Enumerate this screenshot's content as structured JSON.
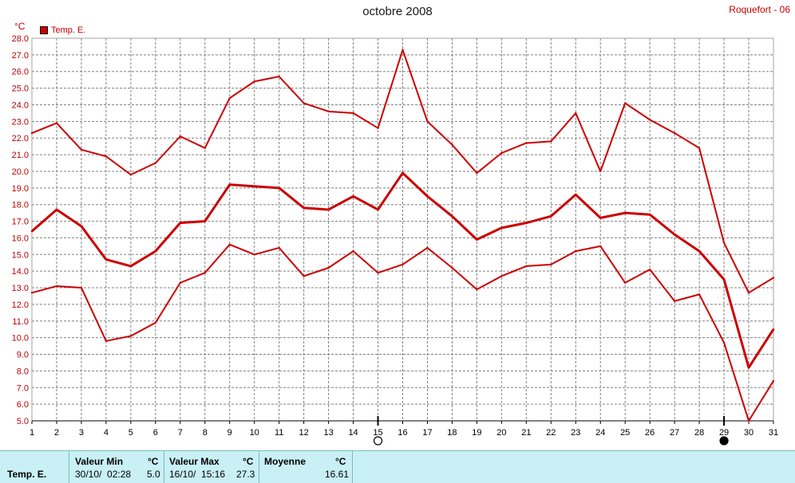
{
  "header": {
    "title": "octobre 2008",
    "station": "Roquefort - 06",
    "unit": "°C",
    "legend_label": "Temp. E."
  },
  "colors": {
    "series": "#cc0000",
    "grid": "#808080",
    "axis_text": "#c00000"
  },
  "chart_data": {
    "type": "line",
    "title": "octobre 2008",
    "ylabel": "°C",
    "ylim": [
      5.0,
      28.0
    ],
    "xlim": [
      1,
      31
    ],
    "grid": true,
    "legend_position": "top-left",
    "x": [
      1,
      2,
      3,
      4,
      5,
      6,
      7,
      8,
      9,
      10,
      11,
      12,
      13,
      14,
      15,
      16,
      17,
      18,
      19,
      20,
      21,
      22,
      23,
      24,
      25,
      26,
      27,
      28,
      29,
      30,
      31
    ],
    "series": [
      {
        "name": "Temp. E.",
        "role": "max",
        "values": [
          22.3,
          22.9,
          21.3,
          20.9,
          19.8,
          20.5,
          22.1,
          21.4,
          24.4,
          25.4,
          25.7,
          24.1,
          23.6,
          23.5,
          22.6,
          27.3,
          23.0,
          21.6,
          19.9,
          21.1,
          21.7,
          21.8,
          23.5,
          20.0,
          24.1,
          23.1,
          22.3,
          21.4,
          15.7,
          12.7,
          13.6
        ]
      },
      {
        "role": "mean",
        "values": [
          16.4,
          17.7,
          16.7,
          14.7,
          14.3,
          15.2,
          16.9,
          17.0,
          19.2,
          19.1,
          19.0,
          17.8,
          17.7,
          18.5,
          17.7,
          19.9,
          18.5,
          17.3,
          15.9,
          16.6,
          16.9,
          17.3,
          18.6,
          17.2,
          17.5,
          17.4,
          16.2,
          15.2,
          13.5,
          8.2,
          10.5
        ]
      },
      {
        "role": "min",
        "values": [
          12.7,
          13.1,
          13.0,
          9.8,
          10.1,
          10.9,
          13.3,
          13.9,
          15.6,
          15.0,
          15.4,
          13.7,
          14.2,
          15.2,
          13.9,
          14.4,
          15.4,
          14.2,
          12.9,
          13.7,
          14.3,
          14.4,
          15.2,
          15.5,
          13.3,
          14.1,
          12.2,
          12.6,
          9.7,
          5.0,
          7.4
        ]
      }
    ],
    "moon_phases": [
      {
        "day": 15,
        "phase": "full"
      },
      {
        "day": 29,
        "phase": "new"
      }
    ]
  },
  "footer": {
    "series_label": "Temp. E.",
    "min": {
      "label": "Valeur Min",
      "unit": "°C",
      "when": "30/10/  02:28",
      "value": "5.0"
    },
    "max": {
      "label": "Valeur Max",
      "unit": "°C",
      "when": "16/10/  15:16",
      "value": "27.3"
    },
    "mean": {
      "label": "Moyenne",
      "unit": "°C",
      "value": "16.61"
    }
  }
}
